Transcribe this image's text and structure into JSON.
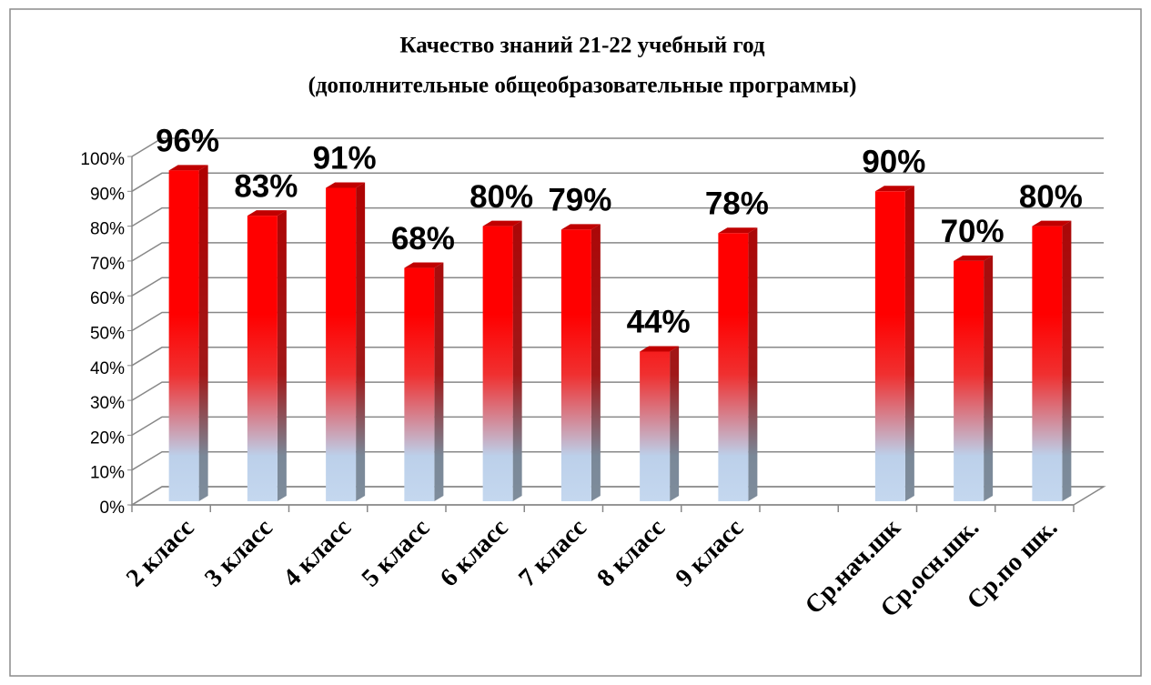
{
  "chart_data": {
    "type": "bar",
    "title": [
      "Качество знаний 21-22 учебный год",
      "(дополнительные общеобразовательные программы)"
    ],
    "categories": [
      "2 класс",
      "3 класс",
      "4 класс",
      "5 класс",
      "6 класс",
      "7 класс",
      "8 класс",
      "9 класс",
      null,
      "Ср.нач.шк",
      "Ср.осн.шк.",
      "Ср.по шк."
    ],
    "values": [
      96,
      83,
      91,
      68,
      80,
      79,
      44,
      78,
      null,
      90,
      70,
      80
    ],
    "value_labels": [
      "96%",
      "83%",
      "91%",
      "68%",
      "80%",
      "79%",
      "44%",
      "78%",
      null,
      "90%",
      "70%",
      "80%"
    ],
    "color": "#ff0000",
    "ylim": [
      0,
      100
    ],
    "yticks": [
      {
        "value": 0,
        "label": "0%"
      },
      {
        "value": 10,
        "label": "10%"
      },
      {
        "value": 20,
        "label": "20%"
      },
      {
        "value": 30,
        "label": "30%"
      },
      {
        "value": 40,
        "label": "40%"
      },
      {
        "value": 50,
        "label": "50%"
      },
      {
        "value": 60,
        "label": "60%"
      },
      {
        "value": 70,
        "label": "70%"
      },
      {
        "value": 80,
        "label": "80%"
      },
      {
        "value": 90,
        "label": "90%"
      },
      {
        "value": 100,
        "label": "100%"
      }
    ],
    "grid": true
  }
}
